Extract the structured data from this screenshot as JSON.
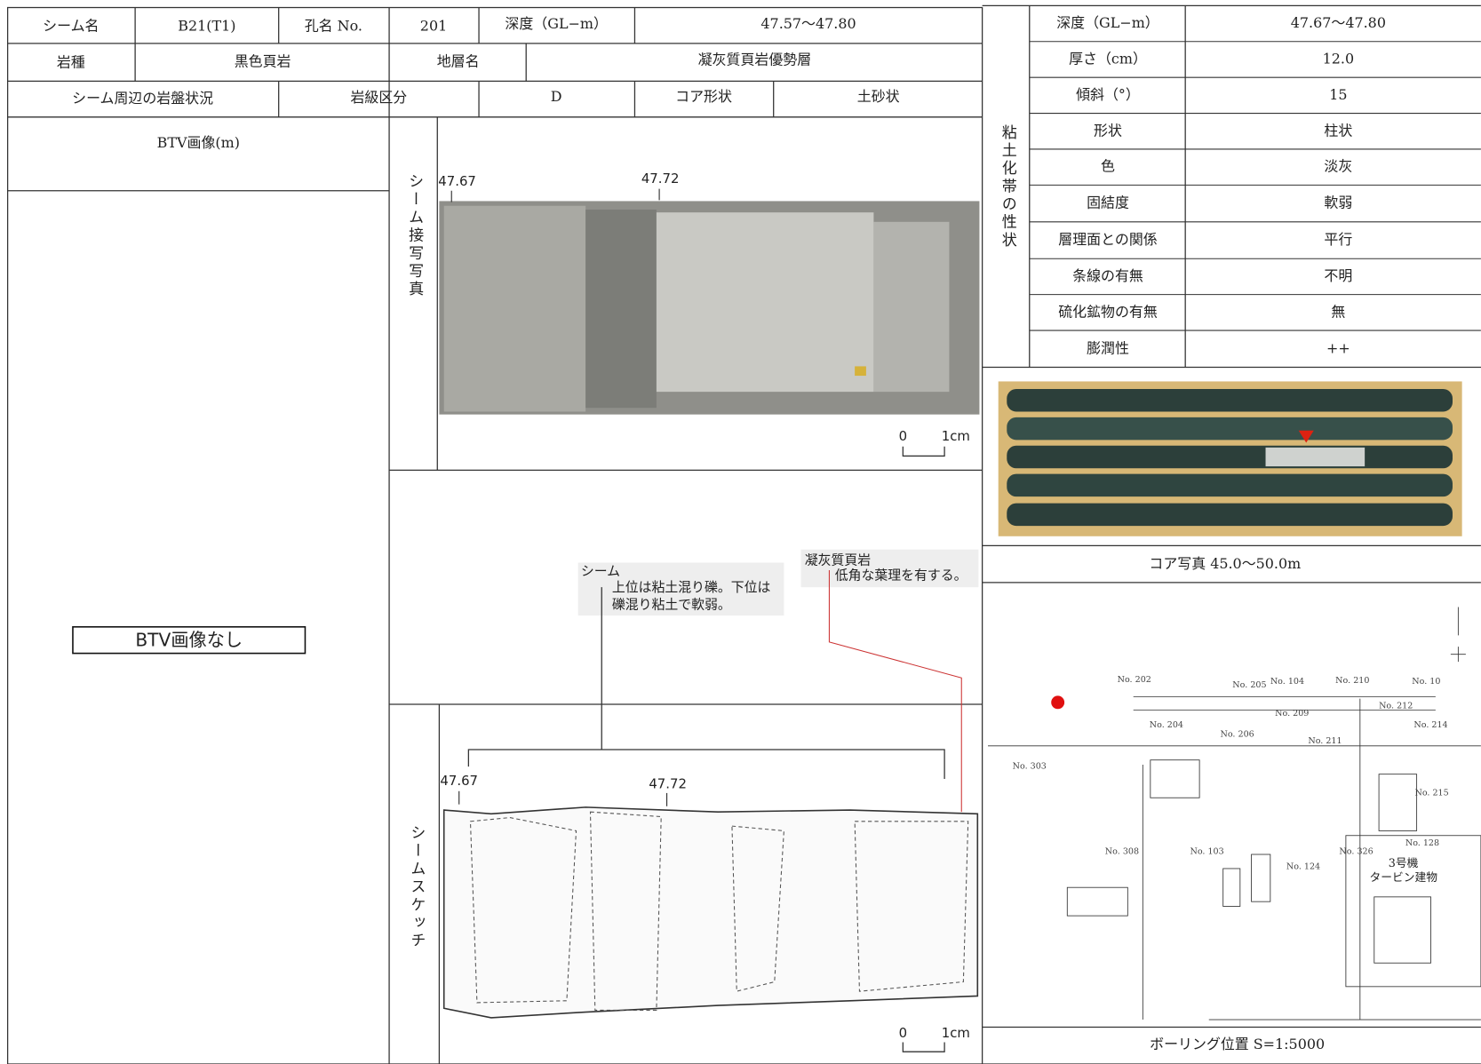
{
  "header": {
    "seam_name_label": "シーム名",
    "seam_name": "B21(T1)",
    "hole_label": "孔名 No.",
    "hole": "201",
    "depth_label": "深度（GL−m）",
    "depth": "47.57〜47.80",
    "rock_type_label": "岩種",
    "rock_type": "黒色頁岩",
    "strata_label": "地層名",
    "strata": "凝灰質頁岩優勢層",
    "surrounding_label": "シーム周辺の岩盤状況",
    "rock_class_label": "岩級区分",
    "rock_class": "D",
    "core_shape_label": "コア形状",
    "core_shape": "土砂状"
  },
  "btv": {
    "label": "BTV画像(m)",
    "none": "BTV画像なし"
  },
  "photo": {
    "side_label": "シーム接写写真",
    "depth_marks": [
      "47.67",
      "47.72"
    ],
    "scale": [
      "0",
      "1cm"
    ]
  },
  "annotations": {
    "seam_title": "シーム",
    "seam_lines": [
      "上位は粘土混り礫。下位は",
      "礫混り粘土で軟弱。"
    ],
    "tuff_title": "凝灰質頁岩",
    "tuff_text": "低角な葉理を有する。"
  },
  "sketch": {
    "side_label": "シームスケッチ",
    "depth_marks": [
      "47.67",
      "47.72"
    ],
    "scale": [
      "0",
      "1cm"
    ]
  },
  "clay": {
    "side_label": "粘土化帯の性状",
    "rows": [
      [
        "深度（GL−m）",
        "47.67〜47.80"
      ],
      [
        "厚さ（cm）",
        "12.0"
      ],
      [
        "傾斜（°）",
        "15"
      ],
      [
        "形状",
        "柱状"
      ],
      [
        "色",
        "淡灰"
      ],
      [
        "固結度",
        "軟弱"
      ],
      [
        "層理面との関係",
        "平行"
      ],
      [
        "条線の有無",
        "不明"
      ],
      [
        "硫化鉱物の有無",
        "無"
      ],
      [
        "膨潤性",
        "++"
      ]
    ]
  },
  "core_photo": {
    "caption": "コア写真 45.0〜50.0m"
  },
  "map": {
    "caption": "ボーリング位置 S=1:5000",
    "labels": [
      "No. 202",
      "No. 205",
      "No. 104",
      "No. 210",
      "No. 10",
      "No. 204",
      "No. 206",
      "No. 209",
      "No. 212",
      "No. 214",
      "No. 211",
      "No. 303",
      "No. 308",
      "No. 103",
      "No. 124",
      "No. 326",
      "No. 215",
      "No. 128",
      "3号機",
      "タービン建物"
    ]
  }
}
